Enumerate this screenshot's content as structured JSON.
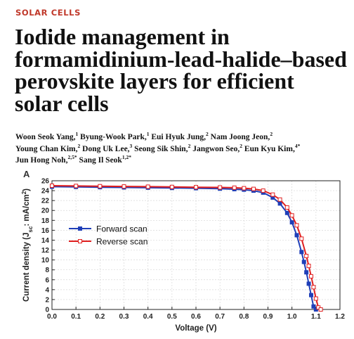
{
  "section_label": "SOLAR CELLS",
  "title_lines": [
    "Iodide management in",
    "formamidinium-lead-halide–based",
    "perovskite layers for efficient",
    "solar cells"
  ],
  "authors": [
    {
      "name": "Woon Seok Yang,",
      "aff": "1"
    },
    {
      "name": "Byung-Wook Park,",
      "aff": "1"
    },
    {
      "name": "Eui Hyuk Jung,",
      "aff": "2"
    },
    {
      "name": "Nam Joong Jeon,",
      "aff": "2"
    },
    {
      "name": "Young Chan Kim,",
      "aff": "2"
    },
    {
      "name": "Dong Uk Lee,",
      "aff": "3"
    },
    {
      "name": "Seong Sik Shin,",
      "aff": "2"
    },
    {
      "name": "Jangwon Seo,",
      "aff": "2"
    },
    {
      "name": "Eun Kyu Kim,",
      "aff": "4*"
    },
    {
      "name": "Jun Hong Noh,",
      "aff": "2,5*"
    },
    {
      "name": "Sang Il Seok",
      "aff": "1,2*"
    }
  ],
  "chart_data": {
    "type": "line",
    "panel_label": "A",
    "xlabel": "Voltage (V)",
    "ylabel_main": "Current density (J",
    "ylabel_sub": "sc",
    "ylabel_end": ": mA/cm",
    "ylabel_sup": "2",
    "ylabel_close": ")",
    "xlim": [
      0.0,
      1.2
    ],
    "ylim": [
      0,
      26
    ],
    "xticks": [
      "0.0",
      "0.1",
      "0.2",
      "0.3",
      "0.4",
      "0.5",
      "0.6",
      "0.7",
      "0.8",
      "0.9",
      "1.0",
      "1.1",
      "1.2"
    ],
    "yticks": [
      "0",
      "2",
      "4",
      "6",
      "8",
      "10",
      "12",
      "14",
      "16",
      "18",
      "20",
      "22",
      "24",
      "26"
    ],
    "legend_position": "center-left",
    "series": [
      {
        "name": "Forward scan",
        "color": "#1f3fb8",
        "marker": "filled-square",
        "x": [
          0.0,
          0.1,
          0.2,
          0.3,
          0.4,
          0.5,
          0.6,
          0.7,
          0.76,
          0.8,
          0.84,
          0.88,
          0.92,
          0.95,
          0.98,
          1.0,
          1.02,
          1.04,
          1.05,
          1.06,
          1.07,
          1.08,
          1.09,
          1.1
        ],
        "y": [
          24.8,
          24.75,
          24.7,
          24.65,
          24.6,
          24.55,
          24.5,
          24.4,
          24.3,
          24.2,
          24.0,
          23.6,
          22.6,
          21.4,
          19.5,
          17.6,
          15.0,
          11.6,
          9.6,
          7.5,
          5.2,
          2.9,
          0.6,
          0.0
        ]
      },
      {
        "name": "Reverse scan",
        "color": "#e02020",
        "marker": "open-square",
        "x": [
          0.0,
          0.1,
          0.2,
          0.3,
          0.4,
          0.5,
          0.6,
          0.7,
          0.76,
          0.8,
          0.84,
          0.88,
          0.92,
          0.95,
          0.98,
          1.0,
          1.02,
          1.04,
          1.06,
          1.07,
          1.08,
          1.09,
          1.1,
          1.11,
          1.12
        ],
        "y": [
          25.0,
          24.95,
          24.9,
          24.85,
          24.8,
          24.75,
          24.7,
          24.65,
          24.6,
          24.5,
          24.35,
          24.0,
          23.2,
          22.2,
          20.6,
          19.0,
          17.0,
          14.3,
          10.8,
          8.8,
          6.7,
          4.5,
          2.2,
          0.4,
          0.0
        ]
      }
    ]
  }
}
